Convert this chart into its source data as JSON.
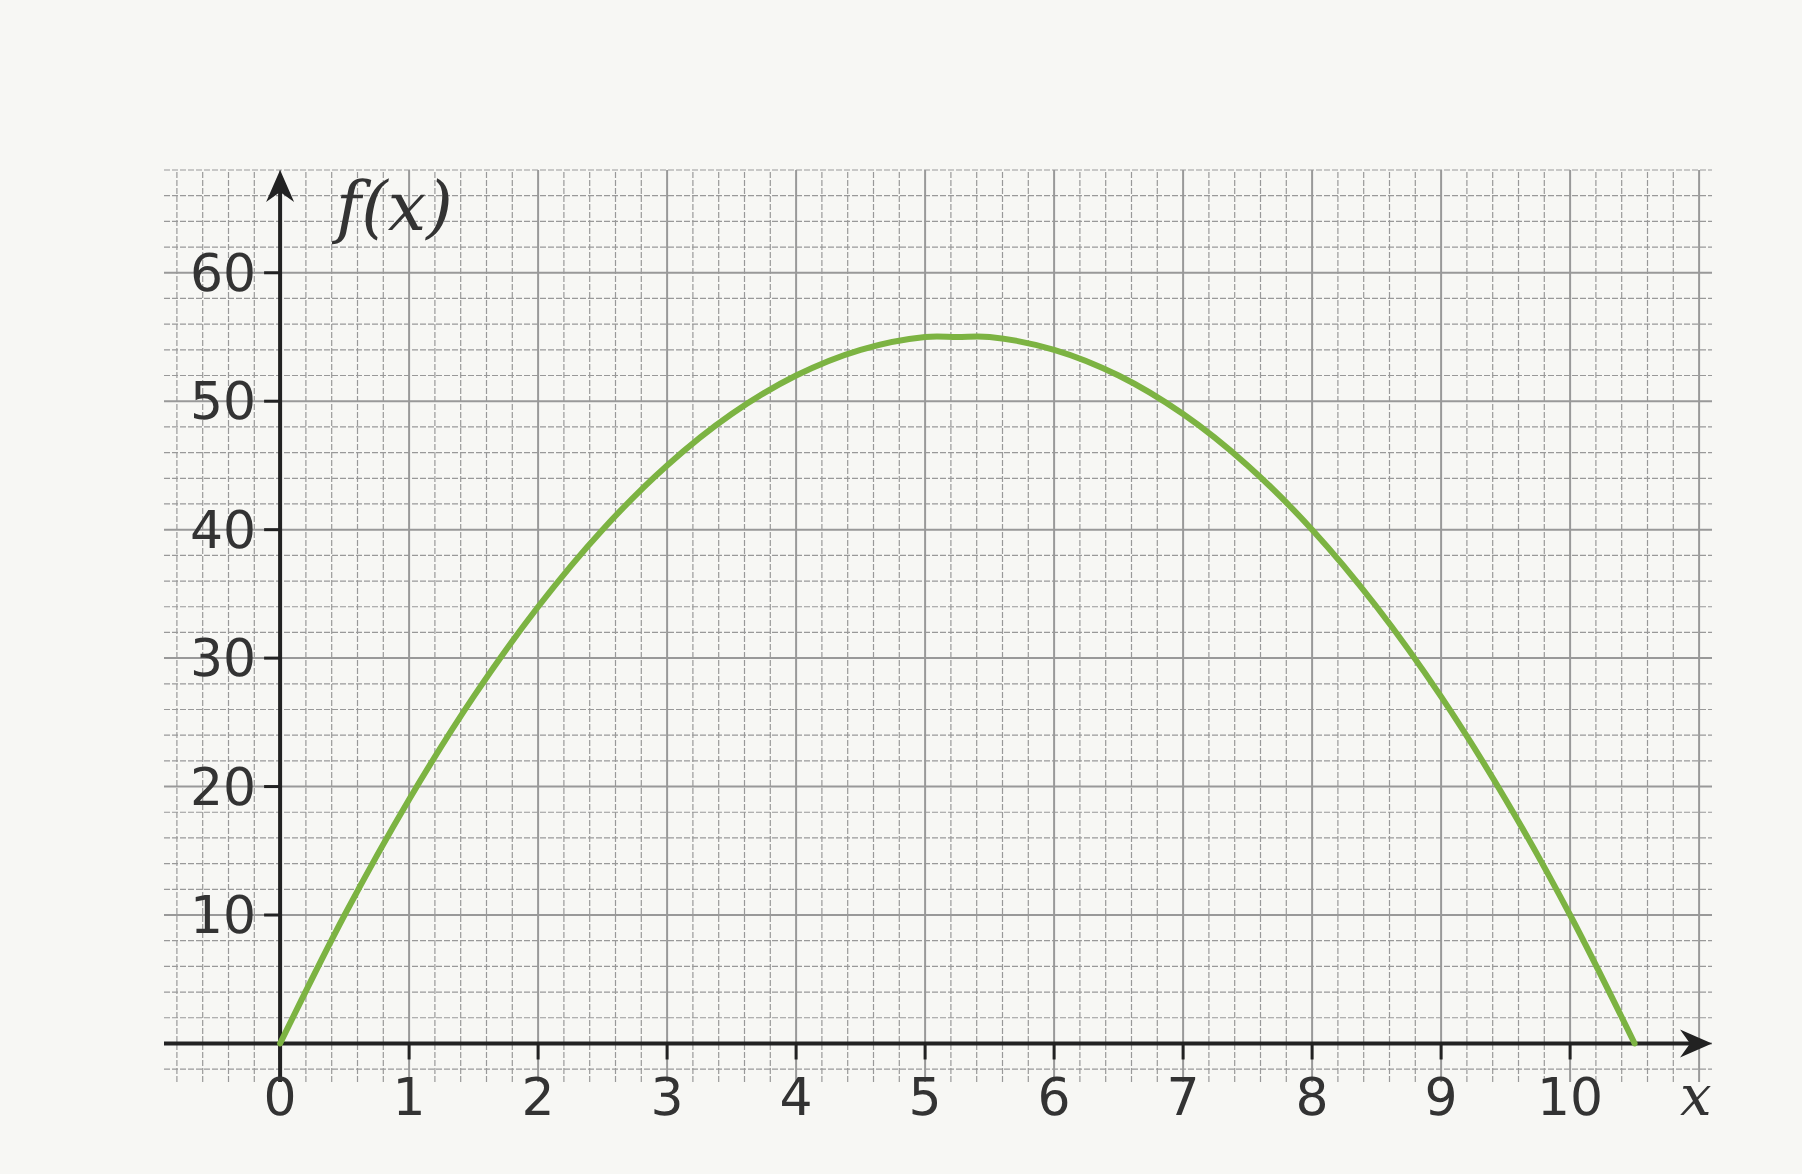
{
  "chart_data": {
    "type": "line",
    "xlabel": "x",
    "ylabel": "f(x)",
    "xlim": [
      -0.9,
      11.1
    ],
    "ylim": [
      -3,
      68
    ],
    "xticks": [
      0,
      1,
      2,
      3,
      4,
      5,
      6,
      7,
      8,
      9,
      10
    ],
    "yticks": [
      10,
      20,
      30,
      40,
      50,
      60
    ],
    "grid": true,
    "marker": "none",
    "line_style": "solid",
    "series": [
      {
        "color": "#7cb342",
        "x": [
          0,
          0.5,
          1,
          1.5,
          2,
          2.5,
          3,
          3.5,
          4,
          4.5,
          5,
          5.25,
          5.5,
          6,
          6.5,
          7,
          7.5,
          8,
          8.5,
          9,
          9.5,
          10,
          10.5
        ],
        "values": [
          0,
          10,
          19,
          27,
          34,
          40,
          45,
          49,
          52,
          54,
          55,
          55,
          55,
          54,
          52,
          49,
          45,
          40,
          34,
          27,
          19,
          10,
          0
        ]
      }
    ]
  }
}
